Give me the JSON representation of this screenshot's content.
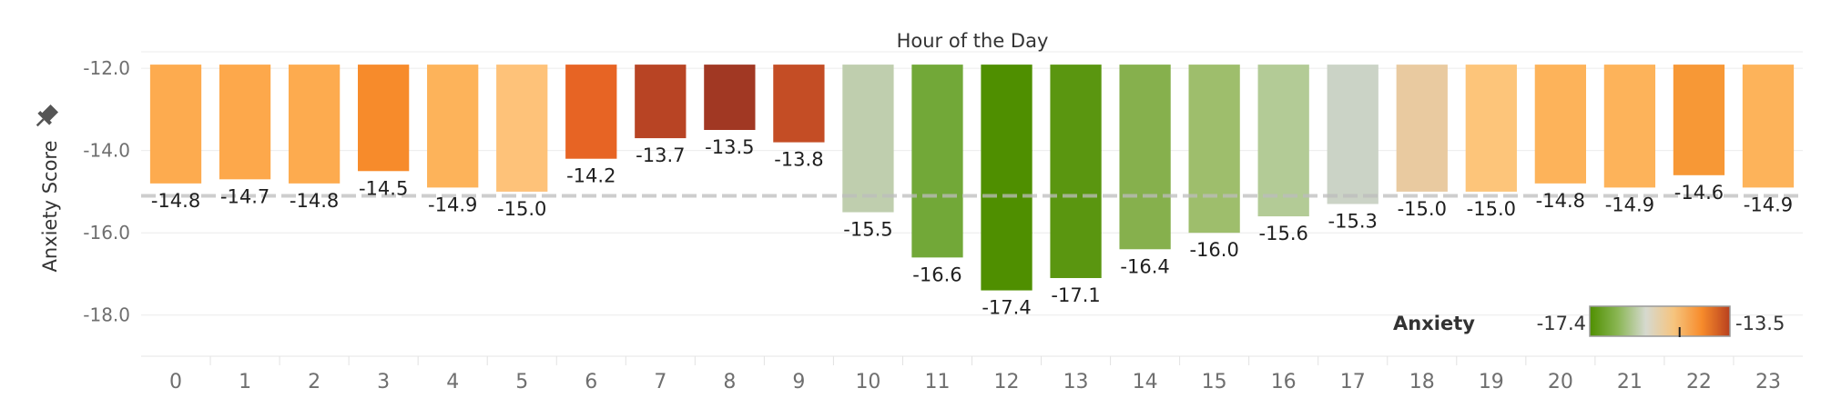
{
  "chart_data": {
    "type": "bar",
    "title": "Hour of the Day",
    "xlabel": "",
    "ylabel": "Anxiety Score",
    "ylim": [
      -19,
      -11.6
    ],
    "y_ticks": [
      "-12.0",
      "-14.0",
      "-16.0",
      "-18.0"
    ],
    "y_tick_values": [
      -12,
      -14,
      -16,
      -18
    ],
    "categories": [
      "0",
      "1",
      "2",
      "3",
      "4",
      "5",
      "6",
      "7",
      "8",
      "9",
      "10",
      "11",
      "12",
      "13",
      "14",
      "15",
      "16",
      "17",
      "18",
      "19",
      "20",
      "21",
      "22",
      "23"
    ],
    "values": [
      -14.8,
      -14.7,
      -14.8,
      -14.5,
      -14.9,
      -15.0,
      -14.2,
      -13.7,
      -13.5,
      -13.8,
      -15.5,
      -16.6,
      -17.4,
      -17.1,
      -16.4,
      -16.0,
      -15.6,
      -15.3,
      -15.0,
      -15.0,
      -14.8,
      -14.9,
      -14.6,
      -14.9
    ],
    "labels": [
      "-14.8",
      "-14.7",
      "-14.8",
      "-14.5",
      "-14.9",
      "-15.0",
      "-14.2",
      "-13.7",
      "-13.5",
      "-13.8",
      "-15.5",
      "-16.6",
      "-17.4",
      "-17.1",
      "-16.4",
      "-16.0",
      "-15.6",
      "-15.3",
      "-15.0",
      "-15.0",
      "-14.8",
      "-14.9",
      "-14.6",
      "-14.9"
    ],
    "reference_line": -15.1,
    "grid": true,
    "legend": {
      "title": "Anxiety",
      "placement": "bottom-right",
      "min_label": "-17.4",
      "max_label": "-13.5",
      "min": -17.4,
      "max": -13.5,
      "marker_value": -14.9
    },
    "colors": {
      "gradient_stops": [
        "#4f8f00",
        "#8ab654",
        "#d6d9cf",
        "#f6c47e",
        "#f78b2b",
        "#b8401f"
      ],
      "bars": [
        "#fdab4f",
        "#fda84b",
        "#fdab4f",
        "#f78b2b",
        "#fdb35a",
        "#fec279",
        "#e76424",
        "#b84424",
        "#a13823",
        "#c44d25",
        "#bfceae",
        "#72a838",
        "#4f8f00",
        "#5a9610",
        "#86b04d",
        "#9ebe6c",
        "#b3cb96",
        "#cbd3c6",
        "#e9caa0",
        "#fdc57a",
        "#fdb35a",
        "#fdb35a",
        "#f79836",
        "#fdb35a"
      ]
    }
  }
}
